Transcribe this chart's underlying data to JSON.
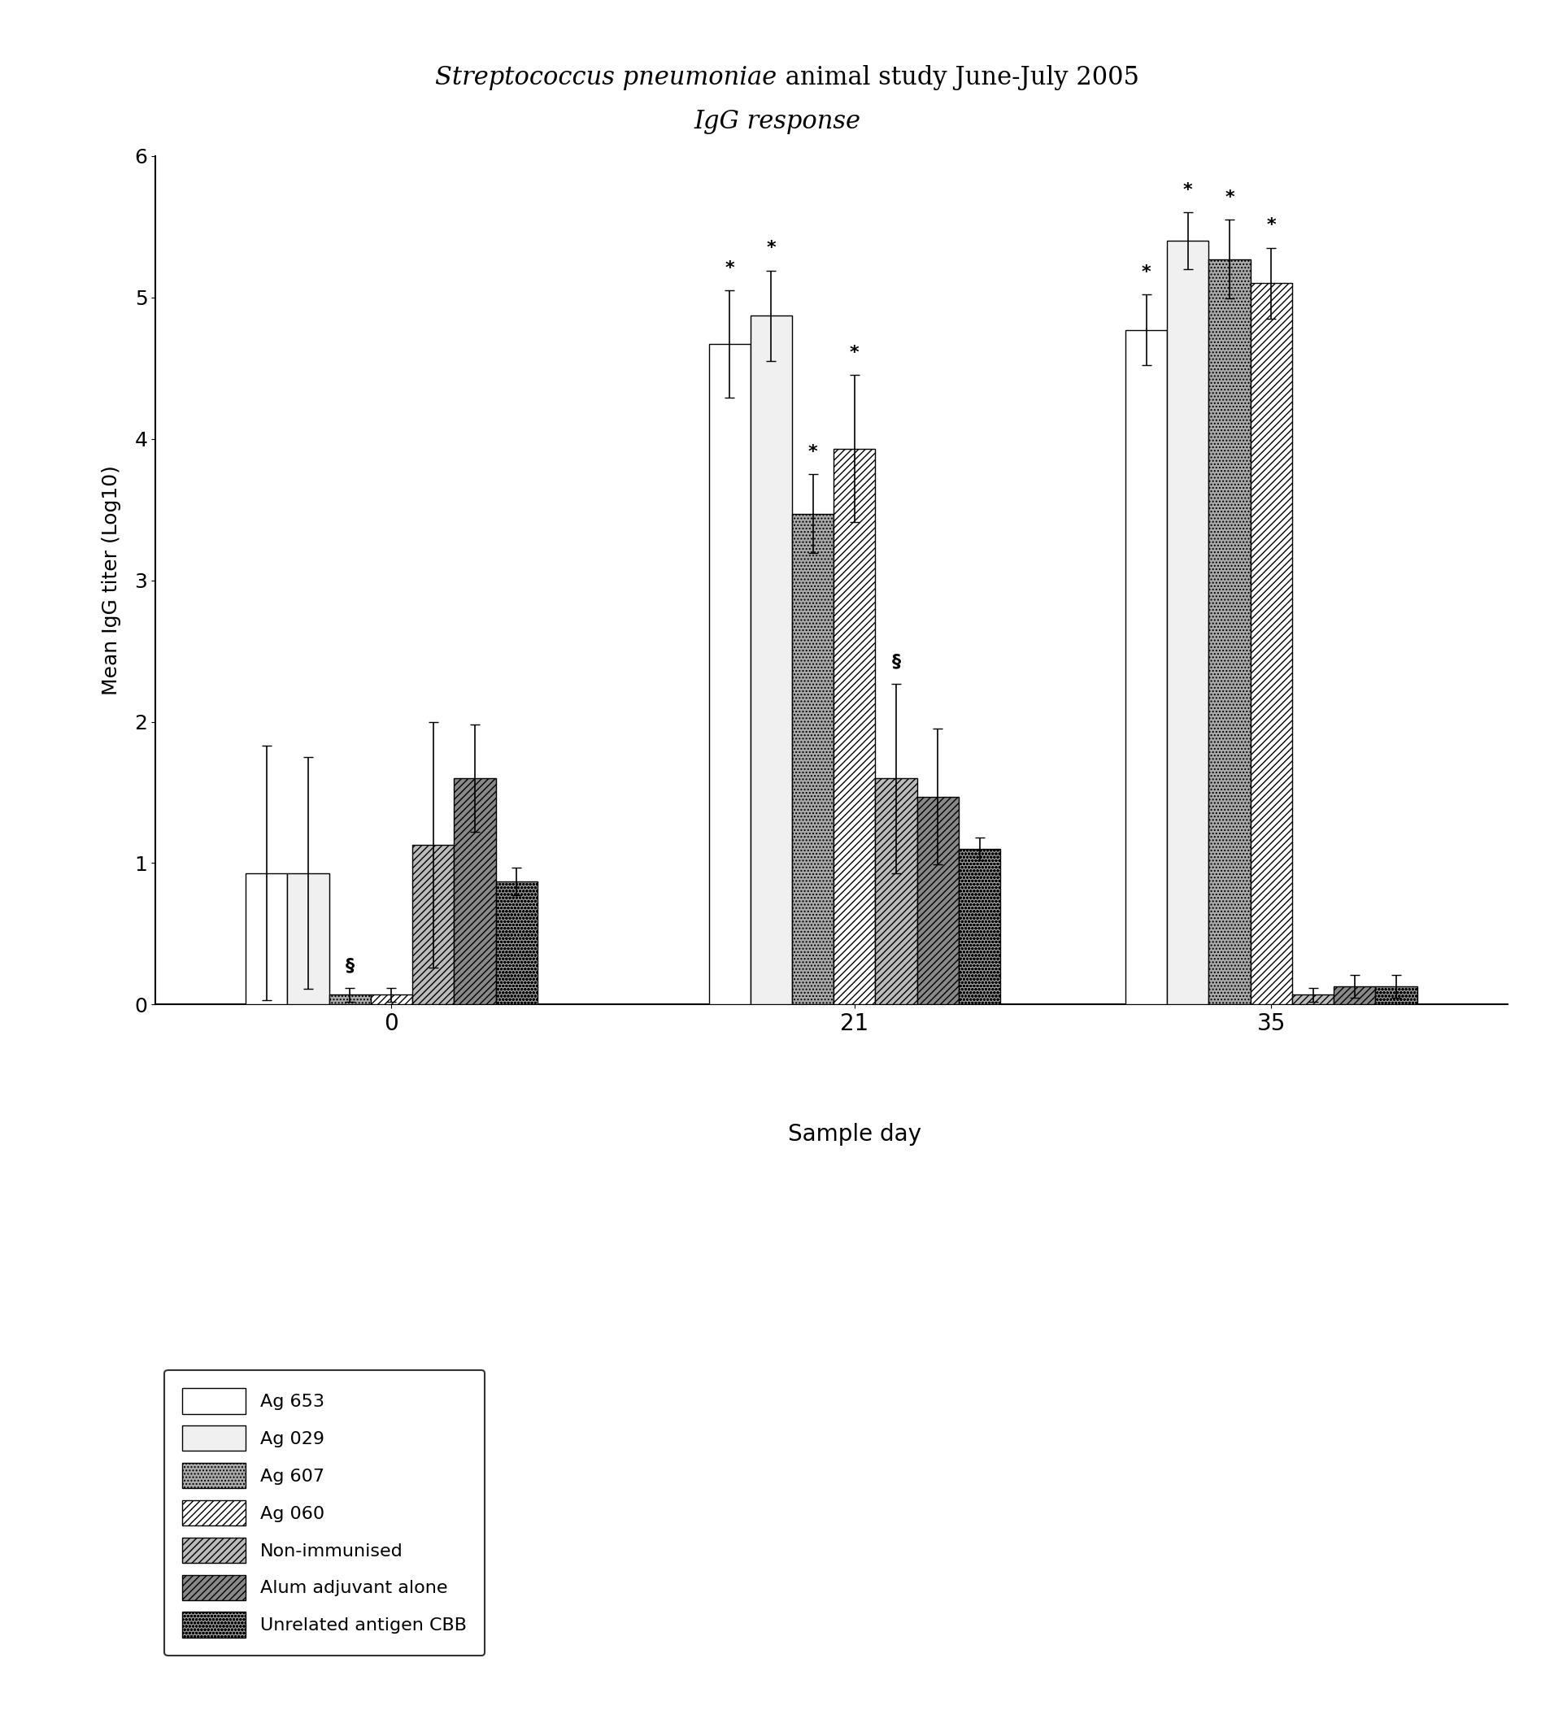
{
  "title_italic": "Streptococcus pneumoniae",
  "title_normal": " animal study June-July 2005",
  "title_line2": "IgG response",
  "ylabel": "Mean IgG titer (Log10)",
  "xlabel": "Sample day",
  "day_labels": [
    "0",
    "21",
    "35"
  ],
  "ylim": [
    0,
    6
  ],
  "yticks": [
    0,
    1,
    2,
    3,
    4,
    5,
    6
  ],
  "bar_width": 0.09,
  "group_centers": [
    0.35,
    1.35,
    2.25
  ],
  "series": [
    {
      "label": "Ag 653",
      "facecolor": "white",
      "edgecolor": "black",
      "hatch": "",
      "values": [
        0.93,
        4.67,
        4.77
      ],
      "errors": [
        0.9,
        0.38,
        0.25
      ],
      "stars": [
        "",
        "*",
        "*"
      ]
    },
    {
      "label": "Ag 029",
      "facecolor": "#f0f0f0",
      "edgecolor": "black",
      "hatch": "",
      "values": [
        0.93,
        4.87,
        5.4
      ],
      "errors": [
        0.82,
        0.32,
        0.2
      ],
      "stars": [
        "",
        "*",
        "*"
      ]
    },
    {
      "label": "Ag 607",
      "facecolor": "#aaaaaa",
      "edgecolor": "black",
      "hatch": "....",
      "values": [
        0.07,
        3.47,
        5.27
      ],
      "errors": [
        0.05,
        0.28,
        0.28
      ],
      "stars": [
        "§",
        "*",
        "*"
      ]
    },
    {
      "label": "Ag 060",
      "facecolor": "white",
      "edgecolor": "black",
      "hatch": "////",
      "values": [
        0.07,
        3.93,
        5.1
      ],
      "errors": [
        0.05,
        0.52,
        0.25
      ],
      "stars": [
        "",
        "*",
        "*"
      ]
    },
    {
      "label": "Non-immunised",
      "facecolor": "#bbbbbb",
      "edgecolor": "black",
      "hatch": "////",
      "values": [
        1.13,
        1.6,
        0.07
      ],
      "errors": [
        0.87,
        0.67,
        0.05
      ],
      "stars": [
        "",
        "§",
        ""
      ]
    },
    {
      "label": "Alum adjuvant alone",
      "facecolor": "#888888",
      "edgecolor": "black",
      "hatch": "////",
      "values": [
        1.6,
        1.47,
        0.13
      ],
      "errors": [
        0.38,
        0.48,
        0.08
      ],
      "stars": [
        "",
        "",
        ""
      ]
    },
    {
      "label": "Unrelated antigen CBB",
      "facecolor": "#999999",
      "edgecolor": "black",
      "hatch": "oooo",
      "values": [
        0.87,
        1.1,
        0.13
      ],
      "errors": [
        0.1,
        0.08,
        0.08
      ],
      "stars": [
        "",
        "",
        ""
      ]
    }
  ]
}
